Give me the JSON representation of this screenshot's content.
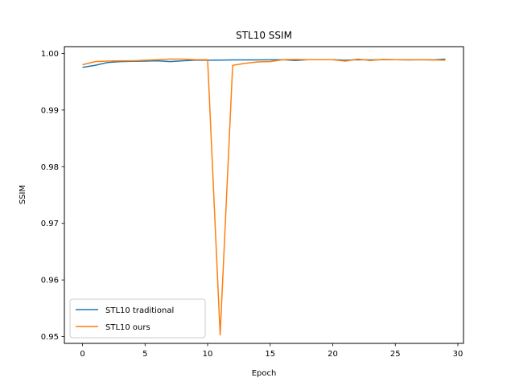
{
  "chart_data": {
    "type": "line",
    "title": "STL10 SSIM",
    "xlabel": "Epoch",
    "ylabel": "SSIM",
    "xlim": [
      -1.45,
      30.45
    ],
    "ylim": [
      0.9488,
      1.0012
    ],
    "x_ticks": [
      0,
      5,
      10,
      15,
      20,
      25,
      30
    ],
    "x_tick_labels": [
      "0",
      "5",
      "10",
      "15",
      "20",
      "25",
      "30"
    ],
    "y_ticks": [
      0.95,
      0.96,
      0.97,
      0.98,
      0.99,
      1.0
    ],
    "y_tick_labels": [
      "0.95",
      "0.96",
      "0.97",
      "0.98",
      "0.99",
      "1.00"
    ],
    "grid": false,
    "legend_position": "lower-left",
    "x": [
      0,
      1,
      2,
      3,
      4,
      5,
      6,
      7,
      8,
      9,
      10,
      11,
      12,
      13,
      14,
      15,
      16,
      17,
      18,
      19,
      20,
      21,
      22,
      23,
      24,
      25,
      26,
      27,
      28,
      29
    ],
    "series": [
      {
        "name": "STL10 traditional",
        "color": "#1f77b4",
        "values": [
          0.99755,
          0.9979,
          0.9984,
          0.99855,
          0.9986,
          0.99865,
          0.9987,
          0.99855,
          0.9987,
          0.9988,
          0.9988,
          0.99883,
          0.99885,
          0.99885,
          0.99885,
          0.99888,
          0.9989,
          0.99875,
          0.9989,
          0.9989,
          0.9989,
          0.9988,
          0.9989,
          0.99885,
          0.9989,
          0.9989,
          0.99885,
          0.9989,
          0.99885,
          0.999
        ]
      },
      {
        "name": "STL10 ours",
        "color": "#ff7f0e",
        "values": [
          0.998,
          0.99855,
          0.99865,
          0.9987,
          0.9987,
          0.9988,
          0.9989,
          0.999,
          0.999,
          0.9989,
          0.9989,
          0.9503,
          0.9979,
          0.99825,
          0.9985,
          0.99855,
          0.9989,
          0.99895,
          0.9989,
          0.9989,
          0.9989,
          0.99865,
          0.999,
          0.99875,
          0.99895,
          0.9989,
          0.9989,
          0.9989,
          0.99885,
          0.9988
        ]
      }
    ]
  }
}
